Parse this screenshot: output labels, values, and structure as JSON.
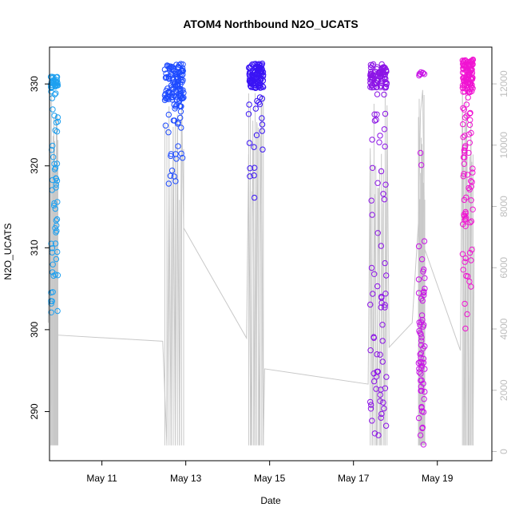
{
  "chart_data": {
    "type": "scatter",
    "title": "ATOM4 Northbound N2O_UCATS",
    "xlabel": "Date",
    "ylabel": "N2O_UCATS",
    "x_ticks": [
      "May 11",
      "May 13",
      "May 15",
      "May 17",
      "May 19"
    ],
    "x_tick_days": [
      11,
      13,
      15,
      17,
      19
    ],
    "xlim_days": [
      9.75,
      20.3
    ],
    "ylim": [
      284,
      334.5
    ],
    "y_ticks": [
      290,
      300,
      310,
      320,
      330
    ],
    "y2_label": "",
    "y2_ticks": [
      0,
      2000,
      4000,
      6000,
      8000,
      10000,
      12000
    ],
    "y2lim": [
      -300,
      13200
    ],
    "y2_color": "#bdbdbd",
    "series": [
      {
        "day_start": 9.78,
        "day_end": 9.95,
        "color": "#1ea0f0",
        "n2o_bands": [
          [
            329.5,
            331,
            30
          ],
          [
            326,
            330,
            10
          ],
          [
            313,
            326,
            25
          ],
          [
            302,
            313,
            22
          ]
        ],
        "altitude": [
          [
            9.72,
            4200
          ],
          [
            9.76,
            12100
          ],
          [
            9.8,
            1500
          ],
          [
            9.84,
            10300
          ],
          [
            9.88,
            300
          ],
          [
            9.91,
            4100
          ],
          [
            9.95,
            3800
          ]
        ]
      },
      {
        "day_start": 12.5,
        "day_end": 12.95,
        "color": "#1e4bff",
        "n2o_bands": [
          [
            328,
            332.5,
            110
          ],
          [
            324,
            328,
            18
          ],
          [
            317,
            324,
            12
          ]
        ],
        "altitude": [
          [
            12.45,
            3600
          ],
          [
            12.55,
            200
          ],
          [
            12.6,
            8800
          ],
          [
            12.65,
            200
          ],
          [
            12.7,
            10600
          ],
          [
            12.75,
            200
          ],
          [
            12.8,
            11000
          ],
          [
            12.85,
            200
          ],
          [
            12.9,
            11600
          ],
          [
            12.95,
            7300
          ]
        ]
      },
      {
        "day_start": 14.5,
        "day_end": 14.85,
        "color": "#3a14f5",
        "n2o_bands": [
          [
            329.5,
            332.5,
            110
          ],
          [
            325,
            329.5,
            10
          ],
          [
            316,
            325,
            10
          ]
        ],
        "altitude": [
          [
            14.45,
            3700
          ],
          [
            14.5,
            9700
          ],
          [
            14.55,
            200
          ],
          [
            14.6,
            10800
          ],
          [
            14.65,
            200
          ],
          [
            14.7,
            10700
          ],
          [
            14.75,
            200
          ],
          [
            14.8,
            11300
          ],
          [
            14.85,
            200
          ],
          [
            14.88,
            2700
          ]
        ]
      },
      {
        "day_start": 17.4,
        "day_end": 17.8,
        "color": "#8c14e6",
        "n2o_bands": [
          [
            329.5,
            332.5,
            80
          ],
          [
            322,
            329,
            12
          ],
          [
            306,
            322,
            14
          ],
          [
            295,
            306,
            18
          ],
          [
            287,
            295,
            22
          ]
        ],
        "altitude": [
          [
            17.35,
            2200
          ],
          [
            17.4,
            9900
          ],
          [
            17.45,
            200
          ],
          [
            17.5,
            8400
          ],
          [
            17.55,
            200
          ],
          [
            17.6,
            8600
          ],
          [
            17.65,
            200
          ],
          [
            17.7,
            8100
          ],
          [
            17.75,
            200
          ],
          [
            17.8,
            11300
          ],
          [
            17.85,
            3400
          ]
        ]
      },
      {
        "day_start": 18.55,
        "day_end": 18.7,
        "color": "#c814e6",
        "n2o_bands": [
          [
            330.5,
            331.5,
            8
          ],
          [
            320,
            323,
            2
          ],
          [
            303,
            311,
            14
          ],
          [
            290,
            302,
            40
          ],
          [
            285,
            290,
            6
          ]
        ],
        "altitude": [
          [
            18.4,
            4200
          ],
          [
            18.55,
            7500
          ],
          [
            18.6,
            11100
          ],
          [
            18.65,
            11800
          ],
          [
            18.7,
            6600
          ]
        ]
      },
      {
        "day_start": 19.6,
        "day_end": 19.85,
        "color": "#f014d2",
        "n2o_bands": [
          [
            329,
            333,
            100
          ],
          [
            320,
            329,
            25
          ],
          [
            312,
            320,
            25
          ],
          [
            300,
            312,
            14
          ]
        ],
        "altitude": [
          [
            19.55,
            3300
          ],
          [
            19.6,
            11800
          ],
          [
            19.65,
            200
          ],
          [
            19.7,
            11000
          ],
          [
            19.75,
            200
          ],
          [
            19.8,
            10800
          ],
          [
            19.85,
            200
          ],
          [
            19.88,
            6700
          ]
        ]
      }
    ],
    "grid": false,
    "legend": "none"
  }
}
